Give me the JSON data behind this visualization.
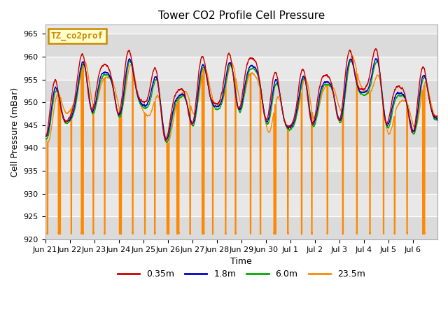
{
  "title": "Tower CO2 Profile Cell Pressure",
  "ylabel": "Cell Pressure (mBar)",
  "xlabel": "Time",
  "ylim": [
    920,
    967
  ],
  "yticks": [
    920,
    925,
    930,
    935,
    940,
    945,
    950,
    955,
    960,
    965
  ],
  "bg_color": "#e8e8e8",
  "fig_color": "#ffffff",
  "legend_entries": [
    "0.35m",
    "1.8m",
    "6.0m",
    "23.5m"
  ],
  "legend_colors": [
    "#cc0000",
    "#0000cc",
    "#00aa00",
    "#ff8800"
  ],
  "label_box_text": "TZ_co2prof",
  "label_box_color": "#ffffcc",
  "label_box_edge": "#cc8800",
  "label_text_color": "#cc8800",
  "n_days": 16,
  "xtick_labels": [
    "Jun 21",
    "Jun 22",
    "Jun 23",
    "Jun 24",
    "Jun 25",
    "Jun 26",
    "Jun 27",
    "Jun 28",
    "Jun 29",
    "Jun 30",
    "Jul 1",
    "Jul 2",
    "Jul 3",
    "Jul 4",
    "Jul 5",
    "Jul 6"
  ],
  "grid_color": "#ffffff",
  "line_width": 1.0,
  "spike_value": 921.2,
  "title_fontsize": 11,
  "label_fontsize": 9,
  "tick_fontsize": 8,
  "legend_fontsize": 9
}
